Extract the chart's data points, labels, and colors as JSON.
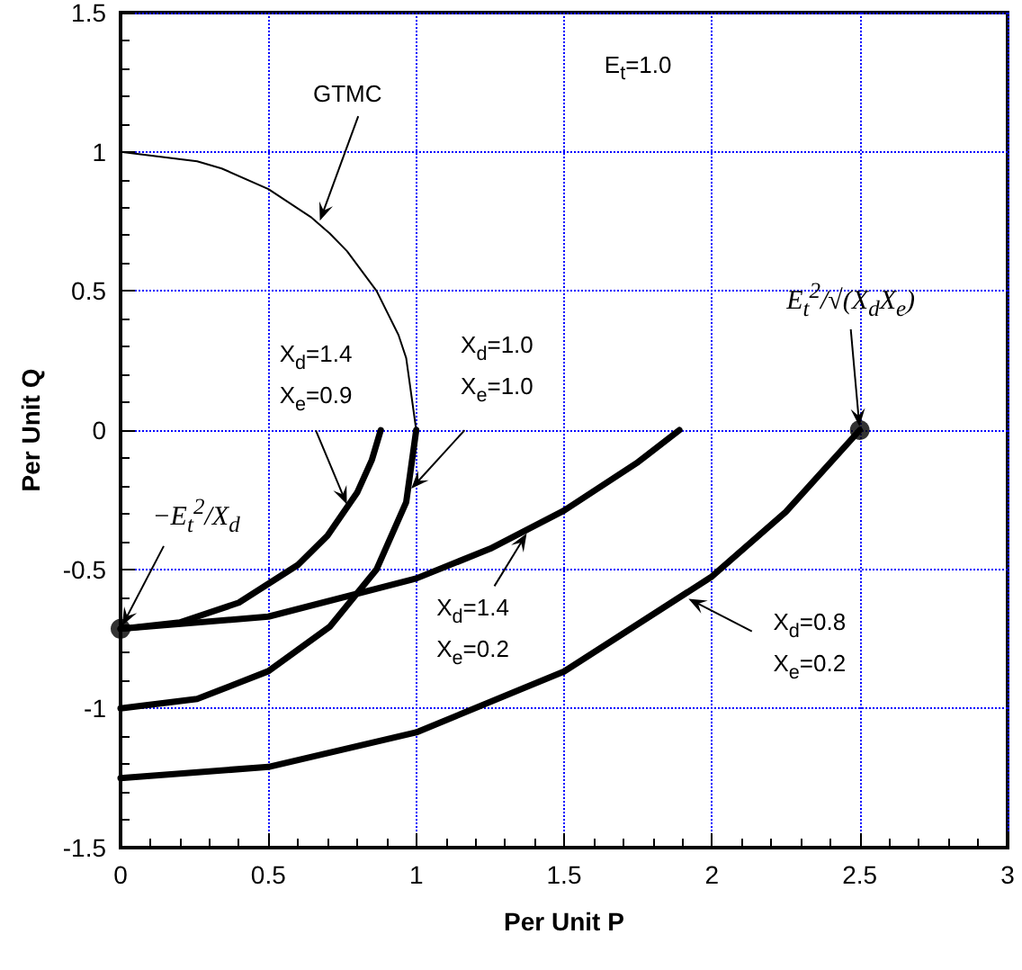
{
  "chart_data": {
    "type": "line",
    "xlabel": "Per Unit P",
    "ylabel": "Per Unit Q",
    "xlim": [
      0,
      3
    ],
    "xticks": [
      0,
      0.5,
      1,
      1.5,
      2,
      2.5,
      3
    ],
    "ylim": [
      -1.5,
      1.5
    ],
    "yticks": [
      -1.5,
      -1,
      -0.5,
      0,
      0.5,
      1,
      1.5
    ],
    "grid": true,
    "marker": "none",
    "line_style": "solid",
    "series": [
      {
        "color": "#000000",
        "x": [
          0,
          0.259,
          0.342,
          0.5,
          0.643,
          0.707,
          0.766,
          0.866,
          0.94,
          0.966,
          1
        ],
        "values": [
          1,
          0.966,
          0.94,
          0.866,
          0.766,
          0.707,
          0.643,
          0.5,
          0.342,
          0.259,
          0
        ]
      },
      {
        "color": "#000000",
        "x": [
          0,
          0.259,
          0.5,
          0.707,
          0.866,
          0.966,
          1
        ],
        "values": [
          -1,
          -0.966,
          -0.866,
          -0.707,
          -0.5,
          -0.259,
          0
        ]
      },
      {
        "color": "#000000",
        "x": [
          0,
          0.2,
          0.4,
          0.6,
          0.7,
          0.8,
          0.85,
          0.88
        ],
        "values": [
          -0.714,
          -0.691,
          -0.62,
          -0.484,
          -0.379,
          -0.225,
          -0.107,
          0
        ]
      },
      {
        "color": "#000000",
        "x": [
          0,
          0.5,
          1,
          1.25,
          1.5,
          1.75,
          1.89
        ],
        "values": [
          -0.714,
          -0.67,
          -0.533,
          -0.426,
          -0.289,
          -0.115,
          0
        ]
      },
      {
        "color": "#000000",
        "x": [
          0,
          0.5,
          1,
          1.5,
          2,
          2.25,
          2.5
        ],
        "values": [
          -1.25,
          -1.21,
          -1.086,
          -0.867,
          -0.526,
          -0.294,
          0
        ]
      },
      {
        "type": "scatter",
        "marker": "circle",
        "color": "#000000",
        "x": [
          0,
          2.5
        ],
        "values": [
          -0.714,
          0
        ]
      }
    ],
    "annotations": [
      {
        "text": "GTMC",
        "x": 0.67,
        "y": 0.74
      },
      "E$_{t}$=1.0",
      {
        "text": "X$_{d}$=1.4\nX$_{e}$=0.9",
        "x": 0.77,
        "y": -0.279
      },
      {
        "text": "X$_{d}$=1.0\nX$_{e}$=1.0",
        "x": 0.975,
        "y": -0.22
      },
      {
        "text": "−E$_{t}$$^{2}$/X$_{d}$",
        "x": 0,
        "y": -0.714
      },
      {
        "text": "E$_{t}$$^{2}$/√(X$_{d}$X$_{e}$)",
        "x": 2.5,
        "y": 0
      },
      {
        "text": "X$_{d}$=1.4\nX$_{e}$=0.2",
        "x": 1.38,
        "y": -0.36
      },
      {
        "text": "X$_{d}$=0.8\nX$_{e}$=0.2",
        "x": 1.91,
        "y": -0.6
      }
    ]
  }
}
